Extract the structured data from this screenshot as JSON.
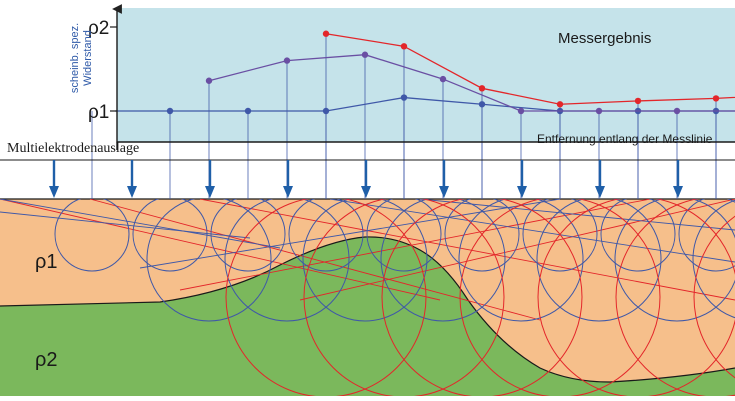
{
  "figure": {
    "plot_title": "Messergebnis",
    "y_axis_label_line1": "scheinb. spez.",
    "y_axis_label_line2": "Widerstand",
    "y_tick_top": "ρ2",
    "y_tick_bottom": "ρ1",
    "x_axis_label": "Entfernung entlang der Messlinie",
    "array_label": "Multielektrodenauslage",
    "layer_upper_label": "ρ1",
    "layer_lower_label": "ρ2"
  },
  "colors": {
    "plot_bg": "#c5e3ea",
    "layer_upper": "#f6bf8b",
    "layer_lower": "#7bb85c",
    "blue_series": "#3f58a8",
    "purple_series": "#6a4fa3",
    "red_series": "#e3262a",
    "electrode": "#1f5fa8"
  },
  "chart_data": {
    "type": "line",
    "title": "Messergebnis",
    "xlabel": "Entfernung entlang der Messlinie",
    "ylabel": "scheinb. spez. Widerstand",
    "y_ticks": [
      "ρ1",
      "ρ2"
    ],
    "ylim": [
      0,
      1
    ],
    "xlim": [
      0,
      20
    ],
    "grid": false,
    "series": [
      {
        "color": "blue",
        "x": [
          1,
          3,
          5,
          7,
          9,
          11,
          13,
          15,
          17,
          19
        ],
        "y": [
          0.0,
          0.0,
          0.0,
          0.0,
          0.16,
          0.08,
          0.0,
          0.0,
          0.0,
          0.0
        ]
      },
      {
        "color": "purple",
        "x": [
          4,
          6,
          8,
          10,
          12,
          14,
          16,
          18
        ],
        "y": [
          0.36,
          0.6,
          0.67,
          0.38,
          0.0,
          0.0,
          0.0,
          0.0
        ]
      },
      {
        "color": "red",
        "x": [
          7,
          9,
          11,
          13,
          15,
          17,
          19
        ],
        "y": [
          0.92,
          0.77,
          0.27,
          0.08,
          0.12,
          0.15,
          0.2
        ]
      }
    ]
  }
}
